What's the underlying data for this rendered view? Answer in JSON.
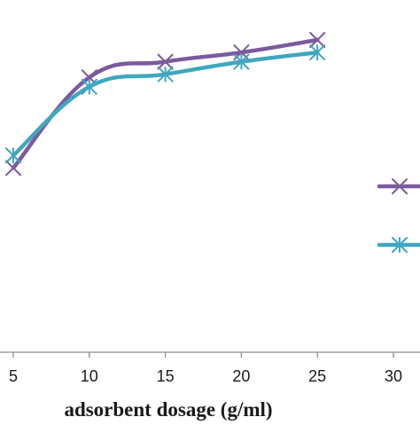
{
  "chart_data": {
    "type": "line",
    "title": "",
    "xlabel": "adsorbent dosage (g/ml)",
    "ylabel": "",
    "x": [
      5,
      10,
      15,
      20,
      25
    ],
    "xticks": [
      5,
      10,
      15,
      20,
      25,
      30
    ],
    "xlim": [
      5,
      30
    ],
    "ylim": [
      0,
      100
    ],
    "grid": false,
    "legend_position": "right",
    "series": [
      {
        "name": "",
        "color": "#7B5A9E",
        "marker": "x",
        "values": [
          59,
          88,
          93,
          96,
          100
        ]
      },
      {
        "name": "",
        "color": "#3FA7BF",
        "marker": "asterisk",
        "values": [
          63,
          85,
          89,
          93,
          96
        ]
      }
    ]
  }
}
